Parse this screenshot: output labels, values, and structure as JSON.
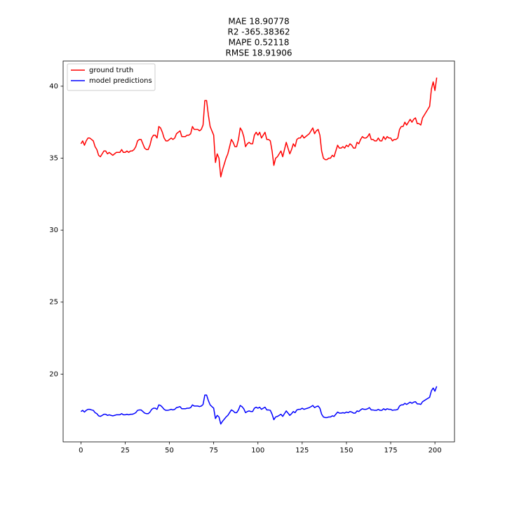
{
  "chart_data": {
    "type": "line",
    "title": [
      "MAE 18.90778",
      "R2 -365.38362",
      "MAPE 0.52118",
      "RMSE 18.91906"
    ],
    "x": [
      0,
      1,
      2,
      3,
      4,
      5,
      6,
      7,
      8,
      9,
      10,
      11,
      12,
      13,
      14,
      15,
      16,
      17,
      18,
      19,
      20,
      21,
      22,
      23,
      24,
      25,
      26,
      27,
      28,
      29,
      30,
      31,
      32,
      33,
      34,
      35,
      36,
      37,
      38,
      39,
      40,
      41,
      42,
      43,
      44,
      45,
      46,
      47,
      48,
      49,
      50,
      51,
      52,
      53,
      54,
      55,
      56,
      57,
      58,
      59,
      60,
      61,
      62,
      63,
      64,
      65,
      66,
      67,
      68,
      69,
      70,
      71,
      72,
      73,
      74,
      75,
      76,
      77,
      78,
      79,
      80,
      81,
      82,
      83,
      84,
      85,
      86,
      87,
      88,
      89,
      90,
      91,
      92,
      93,
      94,
      95,
      96,
      97,
      98,
      99,
      100,
      101,
      102,
      103,
      104,
      105,
      106,
      107,
      108,
      109,
      110,
      111,
      112,
      113,
      114,
      115,
      116,
      117,
      118,
      119,
      120,
      121,
      122,
      123,
      124,
      125,
      126,
      127,
      128,
      129,
      130,
      131,
      132,
      133,
      134,
      135,
      136,
      137,
      138,
      139,
      140,
      141,
      142,
      143,
      144,
      145,
      146,
      147,
      148,
      149,
      150,
      151,
      152,
      153,
      154,
      155,
      156,
      157,
      158,
      159,
      160,
      161,
      162,
      163,
      164,
      165,
      166,
      167,
      168,
      169,
      170,
      171,
      172,
      173,
      174,
      175,
      176,
      177,
      178,
      179,
      180,
      181,
      182,
      183,
      184,
      185,
      186,
      187,
      188,
      189,
      190,
      191,
      192,
      193,
      194,
      195,
      196,
      197,
      198,
      199,
      200,
      201
    ],
    "series": [
      {
        "name": "ground truth",
        "color": "#ff0000",
        "values": [
          36.0,
          36.2,
          35.9,
          36.2,
          36.4,
          36.4,
          36.3,
          36.2,
          35.8,
          35.6,
          35.2,
          35.1,
          35.3,
          35.5,
          35.5,
          35.3,
          35.4,
          35.3,
          35.2,
          35.3,
          35.4,
          35.4,
          35.4,
          35.6,
          35.4,
          35.4,
          35.5,
          35.4,
          35.5,
          35.5,
          35.6,
          35.8,
          36.2,
          36.3,
          36.3,
          36.0,
          35.7,
          35.6,
          35.6,
          35.9,
          36.4,
          36.6,
          36.6,
          36.4,
          37.2,
          37.1,
          36.8,
          36.4,
          36.2,
          36.2,
          36.3,
          36.4,
          36.3,
          36.4,
          36.7,
          36.8,
          36.9,
          36.5,
          36.5,
          36.5,
          36.6,
          36.6,
          36.7,
          37.2,
          37.0,
          37.0,
          37.0,
          36.9,
          37.0,
          37.3,
          39.0,
          39.0,
          38.0,
          37.2,
          36.9,
          36.6,
          34.7,
          35.3,
          35.0,
          33.7,
          34.2,
          34.6,
          35.0,
          35.3,
          35.8,
          36.3,
          36.1,
          35.8,
          35.8,
          36.3,
          37.1,
          36.9,
          36.5,
          35.8,
          36.0,
          36.1,
          36.0,
          36.0,
          36.6,
          36.8,
          36.6,
          36.8,
          36.4,
          36.6,
          36.8,
          36.3,
          36.3,
          36.2,
          35.5,
          34.5,
          35.0,
          35.1,
          35.3,
          35.5,
          35.1,
          35.6,
          36.1,
          35.7,
          35.3,
          35.6,
          36.0,
          35.8,
          36.3,
          36.4,
          36.4,
          36.6,
          36.4,
          36.5,
          36.6,
          36.7,
          36.9,
          37.1,
          36.7,
          36.9,
          37.0,
          36.6,
          35.5,
          35.0,
          34.9,
          34.9,
          35.0,
          35.0,
          35.2,
          35.1,
          35.5,
          35.9,
          35.7,
          35.7,
          35.8,
          35.7,
          35.9,
          35.8,
          36.0,
          35.9,
          35.7,
          35.7,
          36.1,
          36.0,
          36.3,
          36.5,
          36.4,
          36.4,
          36.5,
          36.7,
          36.3,
          36.3,
          36.2,
          36.2,
          36.4,
          36.2,
          36.2,
          36.5,
          36.3,
          36.5,
          36.4,
          36.4,
          36.2,
          36.3,
          36.3,
          36.4,
          37.0,
          37.2,
          37.2,
          37.5,
          37.3,
          37.5,
          37.7,
          37.5,
          37.7,
          37.8,
          37.4,
          37.4,
          37.3,
          37.8,
          38.0,
          38.2,
          38.4,
          38.6,
          39.8,
          40.3,
          39.7,
          40.6
        ]
      },
      {
        "name": "model predictions",
        "color": "#0000ff",
        "values": [
          17.4,
          17.48,
          17.36,
          17.48,
          17.55,
          17.55,
          17.51,
          17.48,
          17.32,
          17.25,
          17.1,
          17.06,
          17.13,
          17.21,
          17.21,
          17.13,
          17.17,
          17.13,
          17.1,
          17.13,
          17.17,
          17.17,
          17.17,
          17.25,
          17.17,
          17.17,
          17.21,
          17.17,
          17.21,
          17.21,
          17.25,
          17.32,
          17.48,
          17.51,
          17.51,
          17.4,
          17.29,
          17.25,
          17.25,
          17.36,
          17.55,
          17.63,
          17.63,
          17.55,
          17.86,
          17.82,
          17.7,
          17.55,
          17.48,
          17.48,
          17.51,
          17.55,
          17.51,
          17.55,
          17.67,
          17.7,
          17.74,
          17.59,
          17.59,
          17.59,
          17.63,
          17.63,
          17.67,
          17.86,
          17.78,
          17.78,
          17.78,
          17.74,
          17.78,
          17.89,
          18.54,
          18.54,
          18.16,
          17.86,
          17.74,
          17.63,
          16.91,
          17.13,
          17.02,
          16.53,
          16.72,
          16.87,
          17.02,
          17.13,
          17.32,
          17.51,
          17.44,
          17.32,
          17.32,
          17.51,
          17.82,
          17.74,
          17.59,
          17.32,
          17.4,
          17.44,
          17.4,
          17.4,
          17.63,
          17.7,
          17.63,
          17.7,
          17.55,
          17.63,
          17.7,
          17.51,
          17.51,
          17.48,
          17.21,
          16.83,
          17.02,
          17.06,
          17.13,
          17.21,
          17.06,
          17.25,
          17.44,
          17.29,
          17.13,
          17.25,
          17.4,
          17.32,
          17.51,
          17.55,
          17.55,
          17.63,
          17.55,
          17.59,
          17.63,
          17.67,
          17.74,
          17.82,
          17.67,
          17.74,
          17.78,
          17.63,
          17.21,
          17.02,
          16.98,
          16.98,
          17.02,
          17.02,
          17.1,
          17.06,
          17.21,
          17.36,
          17.29,
          17.29,
          17.32,
          17.29,
          17.36,
          17.32,
          17.4,
          17.36,
          17.29,
          17.29,
          17.44,
          17.4,
          17.51,
          17.59,
          17.55,
          17.55,
          17.59,
          17.67,
          17.51,
          17.51,
          17.48,
          17.48,
          17.55,
          17.48,
          17.48,
          17.59,
          17.51,
          17.59,
          17.55,
          17.55,
          17.48,
          17.51,
          17.51,
          17.55,
          17.78,
          17.86,
          17.86,
          17.97,
          17.89,
          17.97,
          18.05,
          17.97,
          18.05,
          18.08,
          17.93,
          17.93,
          17.89,
          18.08,
          18.16,
          18.24,
          18.31,
          18.39,
          18.84,
          19.03,
          18.81,
          19.15
        ]
      }
    ],
    "xlim": [
      -10.05,
      211.05
    ],
    "ylim": [
      15.29,
      41.75
    ],
    "xticks": [
      0,
      25,
      50,
      75,
      100,
      125,
      150,
      175,
      200
    ],
    "yticks": [
      20,
      25,
      30,
      35,
      40
    ],
    "grid": false,
    "legend": "upper left"
  }
}
